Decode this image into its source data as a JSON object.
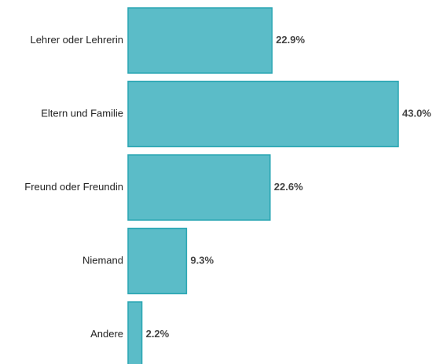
{
  "chart_data": {
    "type": "barh",
    "categories": [
      "Lehrer oder Lehrerin",
      "Eltern und Familie",
      "Freund oder Freundin",
      "Niemand",
      "Andere"
    ],
    "values": [
      22.9,
      43.0,
      22.6,
      9.3,
      2.2
    ],
    "value_labels": [
      "22.9%",
      "43.0%",
      "22.6%",
      "9.3%",
      "2.2%"
    ],
    "color": "#5bbcc8",
    "xlim": [
      0,
      49
    ]
  }
}
